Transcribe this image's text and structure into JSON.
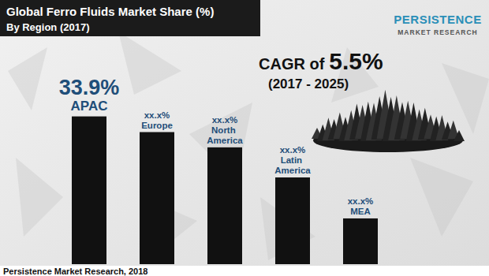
{
  "chart_data": {
    "type": "bar",
    "title": "Global Ferro Fluids Market Share (%)",
    "subtitle": "By Region (2017)",
    "categories": [
      "APAC",
      "Europe",
      "North America",
      "Latin America",
      "MEA"
    ],
    "values": [
      33.9,
      30.3,
      26.8,
      19.9,
      10.5
    ],
    "value_labels": [
      "33.9%",
      "xx.x%",
      "xx.x%",
      "xx.x%",
      "xx.x%"
    ],
    "data_labels": true,
    "color": "#111111",
    "ylim": [
      0,
      36
    ],
    "tick_labels": false,
    "grid": false,
    "annotations": [
      "CAGR of",
      "5.5%",
      "(2017 - 2025)"
    ],
    "source": "Persistence Market Research, 2018",
    "logo": [
      "PERSISTENCE",
      "MARKET RESEARCH"
    ]
  }
}
